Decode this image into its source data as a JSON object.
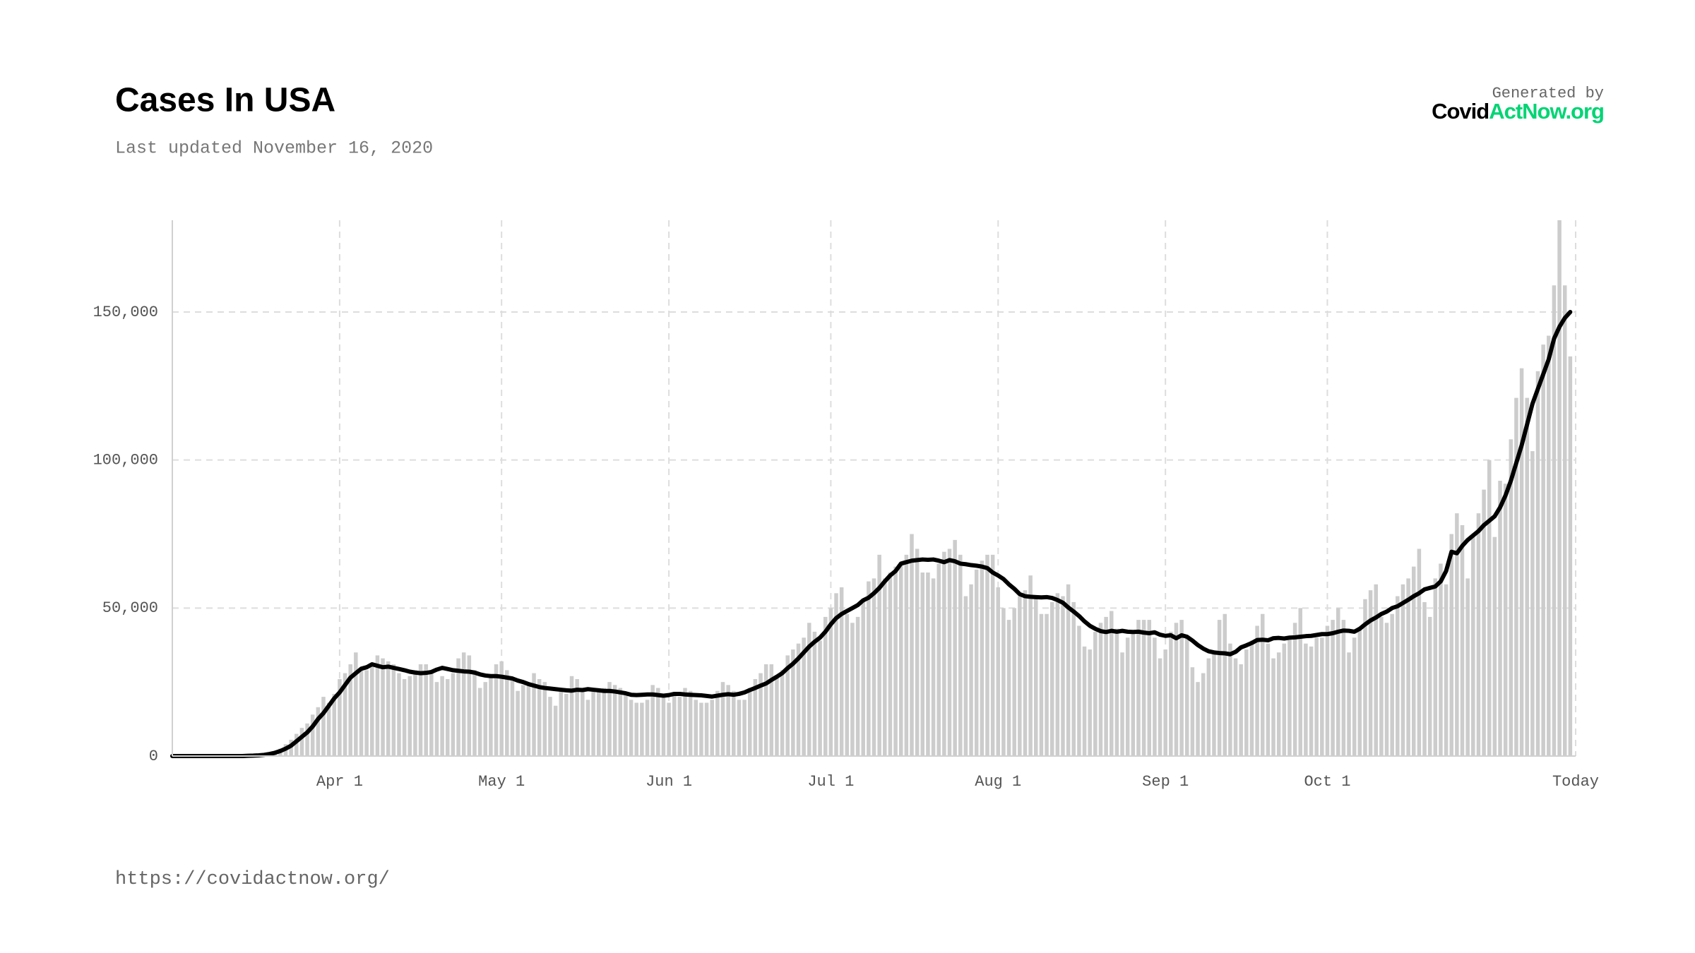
{
  "chart_data": {
    "type": "bar",
    "title": "Cases In USA",
    "subtitle": "Last updated November 16, 2020",
    "grid": true,
    "x": [
      "2020-03-01",
      "2020-03-02",
      "2020-03-03",
      "2020-03-04",
      "2020-03-05",
      "2020-03-06",
      "2020-03-07",
      "2020-03-08",
      "2020-03-09",
      "2020-03-10",
      "2020-03-11",
      "2020-03-12",
      "2020-03-13",
      "2020-03-14",
      "2020-03-15",
      "2020-03-16",
      "2020-03-17",
      "2020-03-18",
      "2020-03-19",
      "2020-03-20",
      "2020-03-21",
      "2020-03-22",
      "2020-03-23",
      "2020-03-24",
      "2020-03-25",
      "2020-03-26",
      "2020-03-27",
      "2020-03-28",
      "2020-03-29",
      "2020-03-30",
      "2020-03-31",
      "2020-04-01",
      "2020-04-02",
      "2020-04-03",
      "2020-04-04",
      "2020-04-05",
      "2020-04-06",
      "2020-04-07",
      "2020-04-08",
      "2020-04-09",
      "2020-04-10",
      "2020-04-11",
      "2020-04-12",
      "2020-04-13",
      "2020-04-14",
      "2020-04-15",
      "2020-04-16",
      "2020-04-17",
      "2020-04-18",
      "2020-04-19",
      "2020-04-20",
      "2020-04-21",
      "2020-04-22",
      "2020-04-23",
      "2020-04-24",
      "2020-04-25",
      "2020-04-26",
      "2020-04-27",
      "2020-04-28",
      "2020-04-29",
      "2020-04-30",
      "2020-05-01",
      "2020-05-02",
      "2020-05-03",
      "2020-05-04",
      "2020-05-05",
      "2020-05-06",
      "2020-05-07",
      "2020-05-08",
      "2020-05-09",
      "2020-05-10",
      "2020-05-11",
      "2020-05-12",
      "2020-05-13",
      "2020-05-14",
      "2020-05-15",
      "2020-05-16",
      "2020-05-17",
      "2020-05-18",
      "2020-05-19",
      "2020-05-20",
      "2020-05-21",
      "2020-05-22",
      "2020-05-23",
      "2020-05-24",
      "2020-05-25",
      "2020-05-26",
      "2020-05-27",
      "2020-05-28",
      "2020-05-29",
      "2020-05-30",
      "2020-05-31",
      "2020-06-01",
      "2020-06-02",
      "2020-06-03",
      "2020-06-04",
      "2020-06-05",
      "2020-06-06",
      "2020-06-07",
      "2020-06-08",
      "2020-06-09",
      "2020-06-10",
      "2020-06-11",
      "2020-06-12",
      "2020-06-13",
      "2020-06-14",
      "2020-06-15",
      "2020-06-16",
      "2020-06-17",
      "2020-06-18",
      "2020-06-19",
      "2020-06-20",
      "2020-06-21",
      "2020-06-22",
      "2020-06-23",
      "2020-06-24",
      "2020-06-25",
      "2020-06-26",
      "2020-06-27",
      "2020-06-28",
      "2020-06-29",
      "2020-06-30",
      "2020-07-01",
      "2020-07-02",
      "2020-07-03",
      "2020-07-04",
      "2020-07-05",
      "2020-07-06",
      "2020-07-07",
      "2020-07-08",
      "2020-07-09",
      "2020-07-10",
      "2020-07-11",
      "2020-07-12",
      "2020-07-13",
      "2020-07-14",
      "2020-07-15",
      "2020-07-16",
      "2020-07-17",
      "2020-07-18",
      "2020-07-19",
      "2020-07-20",
      "2020-07-21",
      "2020-07-22",
      "2020-07-23",
      "2020-07-24",
      "2020-07-25",
      "2020-07-26",
      "2020-07-27",
      "2020-07-28",
      "2020-07-29",
      "2020-07-30",
      "2020-07-31",
      "2020-08-01",
      "2020-08-02",
      "2020-08-03",
      "2020-08-04",
      "2020-08-05",
      "2020-08-06",
      "2020-08-07",
      "2020-08-08",
      "2020-08-09",
      "2020-08-10",
      "2020-08-11",
      "2020-08-12",
      "2020-08-13",
      "2020-08-14",
      "2020-08-15",
      "2020-08-16",
      "2020-08-17",
      "2020-08-18",
      "2020-08-19",
      "2020-08-20",
      "2020-08-21",
      "2020-08-22",
      "2020-08-23",
      "2020-08-24",
      "2020-08-25",
      "2020-08-26",
      "2020-08-27",
      "2020-08-28",
      "2020-08-29",
      "2020-08-30",
      "2020-08-31",
      "2020-09-01",
      "2020-09-02",
      "2020-09-03",
      "2020-09-04",
      "2020-09-05",
      "2020-09-06",
      "2020-09-07",
      "2020-09-08",
      "2020-09-09",
      "2020-09-10",
      "2020-09-11",
      "2020-09-12",
      "2020-09-13",
      "2020-09-14",
      "2020-09-15",
      "2020-09-16",
      "2020-09-17",
      "2020-09-18",
      "2020-09-19",
      "2020-09-20",
      "2020-09-21",
      "2020-09-22",
      "2020-09-23",
      "2020-09-24",
      "2020-09-25",
      "2020-09-26",
      "2020-09-27",
      "2020-09-28",
      "2020-09-29",
      "2020-09-30",
      "2020-10-01",
      "2020-10-02",
      "2020-10-03",
      "2020-10-04",
      "2020-10-05",
      "2020-10-06",
      "2020-10-07",
      "2020-10-08",
      "2020-10-09",
      "2020-10-10",
      "2020-10-11",
      "2020-10-12",
      "2020-10-13",
      "2020-10-14",
      "2020-10-15",
      "2020-10-16",
      "2020-10-17",
      "2020-10-18",
      "2020-10-19",
      "2020-10-20",
      "2020-10-21",
      "2020-10-22",
      "2020-10-23",
      "2020-10-24",
      "2020-10-25",
      "2020-10-26",
      "2020-10-27",
      "2020-10-28",
      "2020-10-29",
      "2020-10-30",
      "2020-10-31",
      "2020-11-01",
      "2020-11-02",
      "2020-11-03",
      "2020-11-04",
      "2020-11-05",
      "2020-11-06",
      "2020-11-07",
      "2020-11-08",
      "2020-11-09",
      "2020-11-10",
      "2020-11-11",
      "2020-11-12",
      "2020-11-13",
      "2020-11-14",
      "2020-11-15"
    ],
    "series": [
      {
        "type": "bar",
        "color": "#cccccc",
        "values": [
          0,
          0,
          0,
          0,
          0,
          0,
          0,
          0,
          0,
          0,
          0,
          0,
          0,
          0,
          100,
          200,
          300,
          500,
          800,
          1500,
          2500,
          4000,
          5500,
          7500,
          9500,
          11000,
          14000,
          16500,
          20000,
          18000,
          21000,
          26000,
          28000,
          31000,
          35000,
          29000,
          29000,
          31000,
          34000,
          33000,
          32000,
          31000,
          28000,
          26000,
          27000,
          29000,
          31000,
          31000,
          29000,
          25000,
          27000,
          26000,
          28000,
          33000,
          35000,
          34000,
          29000,
          23000,
          25000,
          27000,
          31000,
          32000,
          29000,
          26000,
          22000,
          24000,
          25000,
          28000,
          26000,
          25000,
          20000,
          17000,
          22000,
          21000,
          27000,
          26000,
          23000,
          19000,
          22000,
          22000,
          23000,
          25000,
          24000,
          23000,
          21000,
          19000,
          18000,
          18000,
          19000,
          24000,
          23000,
          20000,
          18000,
          21000,
          20000,
          23000,
          22000,
          19000,
          18000,
          18000,
          19000,
          22000,
          25000,
          24000,
          22000,
          19000,
          19000,
          23000,
          26000,
          28000,
          31000,
          31000,
          27000,
          29000,
          34000,
          36000,
          38000,
          40000,
          45000,
          42000,
          39000,
          47000,
          50000,
          55000,
          57000,
          48000,
          45000,
          47000,
          53000,
          59000,
          60000,
          68000,
          60000,
          62000,
          64000,
          65000,
          68000,
          75000,
          70000,
          62000,
          62000,
          60000,
          65000,
          69000,
          70000,
          73000,
          68000,
          54000,
          58000,
          63000,
          66000,
          68000,
          68000,
          57000,
          50000,
          46000,
          50000,
          54000,
          56000,
          61000,
          54000,
          48000,
          48000,
          52000,
          55000,
          54000,
          58000,
          52000,
          44000,
          37000,
          36000,
          42000,
          45000,
          47000,
          49000,
          43000,
          35000,
          40000,
          42000,
          46000,
          46000,
          46000,
          40000,
          33000,
          36000,
          42000,
          45000,
          46000,
          40000,
          30000,
          25000,
          28000,
          33000,
          35000,
          46000,
          48000,
          38000,
          33000,
          31000,
          36000,
          39000,
          44000,
          48000,
          38000,
          33000,
          35000,
          38000,
          40000,
          45000,
          50000,
          38000,
          37000,
          40000,
          40000,
          44000,
          46000,
          50000,
          46000,
          35000,
          40000,
          43000,
          53000,
          56000,
          58000,
          47000,
          45000,
          48000,
          54000,
          58000,
          60000,
          64000,
          70000,
          52000,
          47000,
          60000,
          65000,
          58000,
          75000,
          82000,
          78000,
          60000,
          75000,
          82000,
          90000,
          100000,
          74000,
          93000,
          92000,
          107000,
          121000,
          131000,
          121000,
          103000,
          130000,
          139000,
          142000,
          159000,
          181000,
          159000,
          135000
        ]
      },
      {
        "type": "line",
        "color": "#000000",
        "values": [
          0,
          0,
          0,
          0,
          0,
          0,
          0,
          0,
          0,
          0,
          0,
          0,
          0,
          0,
          100,
          150,
          250,
          400,
          700,
          1100,
          1700,
          2500,
          3500,
          5000,
          6500,
          8000,
          10000,
          12500,
          14500,
          17000,
          19500,
          21500,
          24000,
          26500,
          28000,
          29500,
          30000,
          31000,
          30500,
          30000,
          30200,
          29800,
          29400,
          29000,
          28500,
          28200,
          28000,
          28100,
          28400,
          29200,
          29800,
          29400,
          29000,
          28800,
          28600,
          28500,
          28200,
          27600,
          27200,
          27000,
          27000,
          26800,
          26500,
          26200,
          25500,
          25000,
          24300,
          23800,
          23300,
          23000,
          22800,
          22600,
          22400,
          22200,
          22100,
          22400,
          22300,
          22600,
          22400,
          22200,
          22000,
          22000,
          21800,
          21500,
          21200,
          20700,
          20600,
          20700,
          20800,
          20800,
          20600,
          20400,
          20600,
          21000,
          21000,
          20800,
          20700,
          20600,
          20500,
          20300,
          20100,
          20400,
          20700,
          20900,
          20700,
          21000,
          21500,
          22300,
          23000,
          23800,
          24500,
          25700,
          26800,
          28000,
          29700,
          31200,
          33000,
          35000,
          37000,
          38600,
          40000,
          42000,
          44500,
          46600,
          48000,
          49000,
          50000,
          51000,
          52600,
          53500,
          55000,
          56800,
          59000,
          61000,
          62500,
          65000,
          65500,
          66000,
          66200,
          66400,
          66300,
          66400,
          66000,
          65500,
          66200,
          65800,
          65000,
          64800,
          64500,
          64300,
          64000,
          63500,
          62000,
          61000,
          59800,
          58000,
          56500,
          54700,
          54000,
          53800,
          53700,
          53600,
          53700,
          53400,
          52700,
          51800,
          50200,
          48800,
          47300,
          45500,
          44000,
          43000,
          42200,
          41900,
          42300,
          42000,
          42300,
          42000,
          41900,
          42000,
          41700,
          41500,
          41800,
          41000,
          40600,
          40800,
          39800,
          40800,
          40300,
          39000,
          37500,
          36300,
          35400,
          35000,
          34800,
          34700,
          34400,
          35200,
          36700,
          37400,
          38200,
          39200,
          39300,
          39100,
          39800,
          39900,
          39700,
          40000,
          40100,
          40300,
          40500,
          40600,
          40900,
          41200,
          41200,
          41500,
          42000,
          42400,
          42300,
          42000,
          43000,
          44500,
          45800,
          46800,
          48000,
          48800,
          50000,
          50600,
          51700,
          52800,
          54000,
          55000,
          56300,
          56800,
          57300,
          59000,
          62500,
          69000,
          68500,
          71000,
          73000,
          74500,
          76000,
          78000,
          79500,
          81000,
          84000,
          88000,
          93000,
          99000,
          105000,
          112000,
          119000,
          124000,
          129000,
          134000,
          141000,
          145000,
          148000,
          150000
        ]
      }
    ],
    "xlim": [
      "2020-03-01",
      "2020-11-16"
    ],
    "xticks": [
      {
        "value": "2020-04-01",
        "label": "Apr 1"
      },
      {
        "value": "2020-05-01",
        "label": "May 1"
      },
      {
        "value": "2020-06-01",
        "label": "Jun 1"
      },
      {
        "value": "2020-07-01",
        "label": "Jul 1"
      },
      {
        "value": "2020-08-01",
        "label": "Aug 1"
      },
      {
        "value": "2020-09-01",
        "label": "Sep 1"
      },
      {
        "value": "2020-10-01",
        "label": "Oct 1"
      },
      {
        "value": "2020-11-16",
        "label": "Today"
      }
    ],
    "ylim": [
      0,
      181000
    ],
    "yticks": [
      0,
      {
        "value": 50000,
        "label": "50,000"
      },
      {
        "value": 100000,
        "label": "100,000"
      },
      {
        "value": 150000,
        "label": "150,000"
      }
    ]
  },
  "branding": {
    "generated_by": "Generated by",
    "logo_dark": "Covid",
    "logo_green": "ActNow.org"
  },
  "footer_url": "https://covidactnow.org/"
}
